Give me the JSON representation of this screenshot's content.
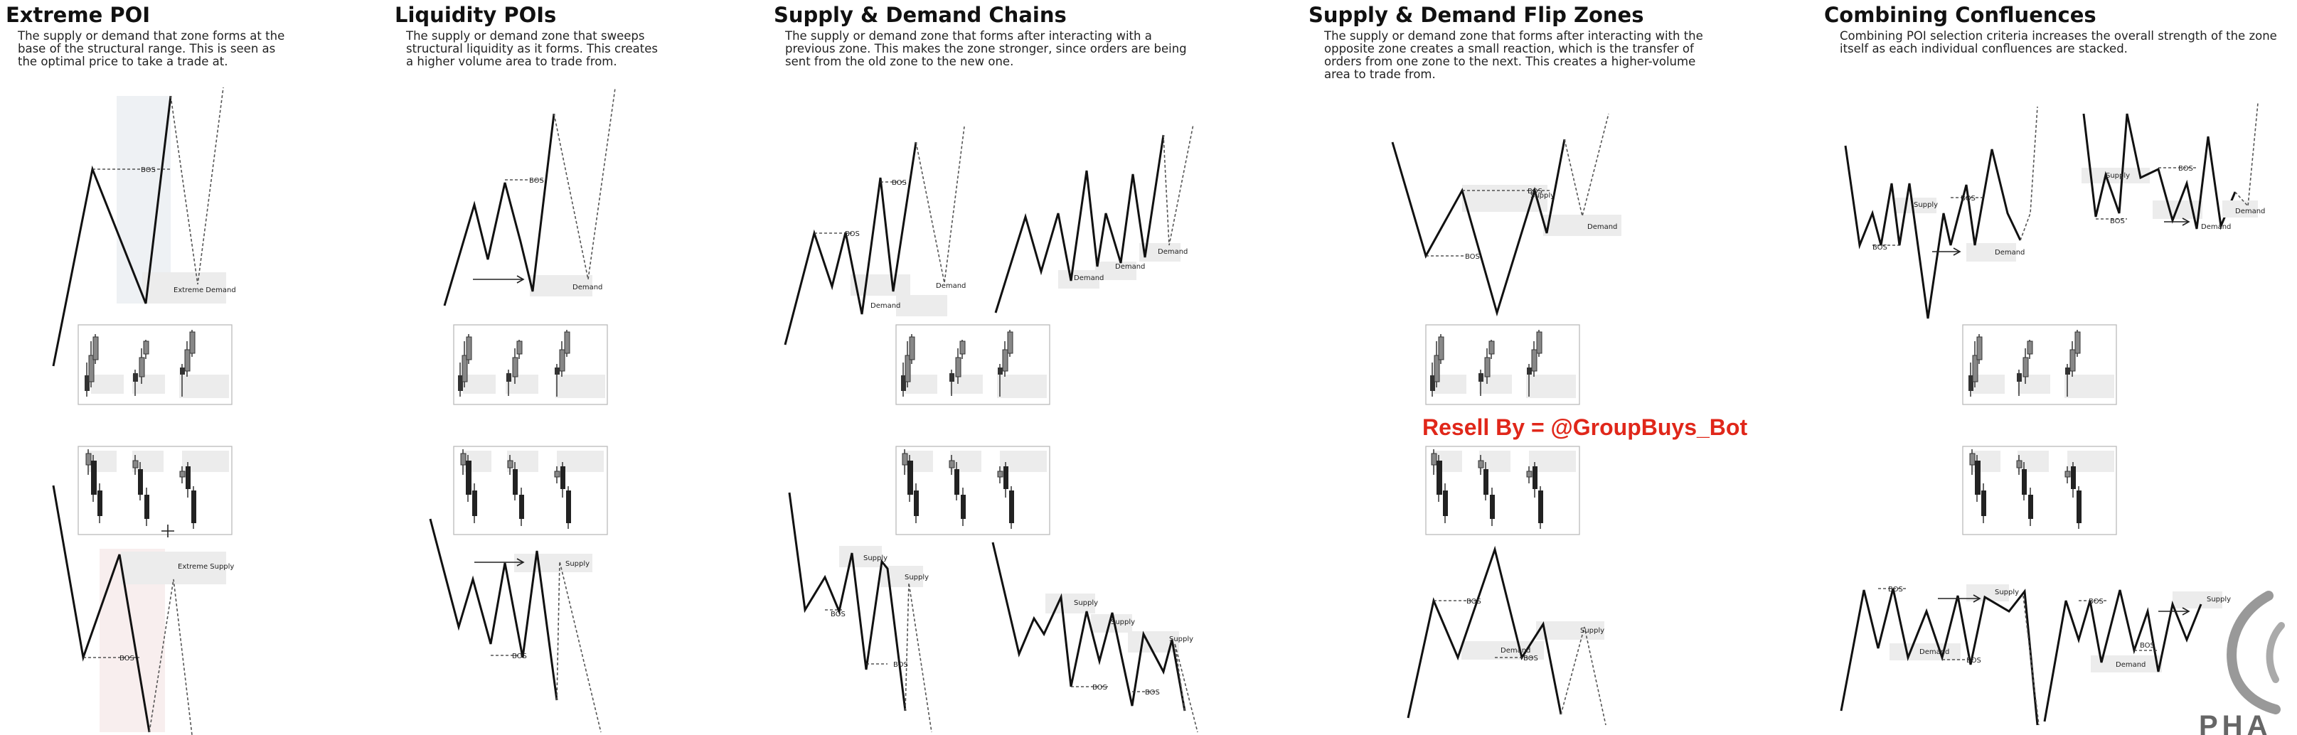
{
  "panels": [
    {
      "title": "Extreme POI",
      "desc": "The supply or demand that zone forms at the\nbase of the structural range. This is seen as\nthe optimal price to take a trade at.",
      "labels": [
        "BOS",
        "Extreme Demand",
        "BOS",
        "Extreme Supply"
      ]
    },
    {
      "title": "Liquidity POIs",
      "desc": "The supply or demand zone that sweeps\nstructural liquidity as it forms. This creates\na higher volume area to trade from.",
      "labels": [
        "BOS",
        "Demand",
        "Supply",
        "BOS"
      ]
    },
    {
      "title": "Supply & Demand Chains",
      "desc": "The supply or demand zone that forms after interacting with a\nprevious zone. This makes the zone stronger, since orders are being\nsent from the old zone to the new one.",
      "labels": [
        "BOS",
        "BOS",
        "Demand",
        "Demand",
        "Demand",
        "Demand",
        "Demand",
        "Supply",
        "Supply",
        "BOS",
        "BOS",
        "Supply",
        "Supply",
        "Supply",
        "BOS",
        "BOS"
      ]
    },
    {
      "title": "Supply & Demand Flip Zones",
      "desc": "The supply or demand zone that forms after interacting with the\nopposite zone creates a small reaction, which is the transfer of\norders from one zone to the next. This creates a higher-volume\narea to trade from.",
      "labels": [
        "Supply",
        "BOS",
        "Demand",
        "BOS",
        "BOS",
        "Demand",
        "Supply",
        "BOS"
      ]
    },
    {
      "title": "Combining Confluences",
      "desc": "Combining POI selection criteria increases the overall strength of the zone\nitself as each individual confluences are stacked.",
      "labels": [
        "Supply",
        "BOS",
        "BOS",
        "Demand",
        "Supply",
        "BOS",
        "BOS",
        "Demand",
        "Demand",
        "BOS",
        "Demand",
        "BOS",
        "Supply",
        "Demand",
        "BOS",
        "BOS",
        "Supply"
      ]
    }
  ],
  "watermark": "Resell By = @GroupBuys_Bot",
  "logo_text": "PHA"
}
